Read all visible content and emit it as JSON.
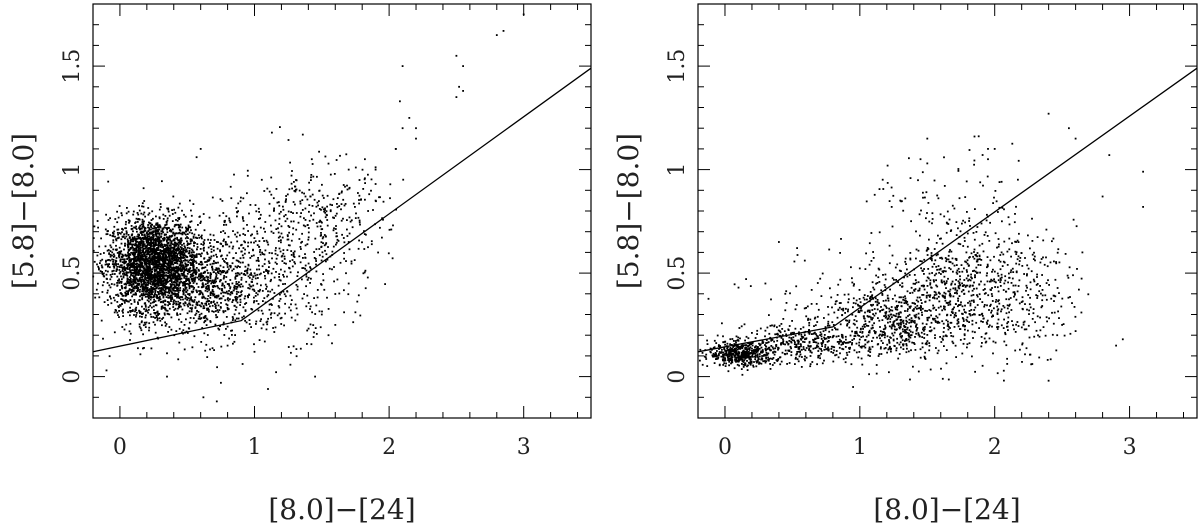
{
  "chart_data": [
    {
      "type": "scatter",
      "xlabel": "[8.0]−[24]",
      "ylabel": "[5.8]−[8.0]",
      "xlim": [
        -0.2,
        3.5
      ],
      "ylim": [
        -0.2,
        1.8
      ],
      "xticks": [
        "0",
        "1",
        "2",
        "3"
      ],
      "yticks": [
        "0",
        "0.5",
        "1",
        "1.5"
      ],
      "grid": false,
      "legend": "none",
      "separator_line": {
        "x": [
          -0.2,
          0.9,
          3.5
        ],
        "y": [
          0.12,
          0.27,
          1.49
        ]
      },
      "clusters": [
        {
          "cx": 0.25,
          "cy": 0.55,
          "sx": 0.17,
          "sy": 0.11,
          "n": 2600
        },
        {
          "cx": 0.55,
          "cy": 0.42,
          "sx": 0.28,
          "sy": 0.12,
          "n": 900
        },
        {
          "cx": 1.1,
          "cy": 0.55,
          "sx": 0.3,
          "sy": 0.18,
          "n": 500
        },
        {
          "cx": 1.5,
          "cy": 0.75,
          "sx": 0.25,
          "sy": 0.15,
          "n": 280
        }
      ],
      "points": [
        [
          0.6,
          1.1
        ],
        [
          0.57,
          1.06
        ],
        [
          0.95,
          0.97
        ],
        [
          -0.1,
          0.03
        ],
        [
          0.35,
          0.0
        ],
        [
          0.62,
          -0.1
        ],
        [
          0.72,
          -0.12
        ],
        [
          1.1,
          -0.06
        ],
        [
          1.45,
          0.0
        ],
        [
          0.75,
          -0.03
        ],
        [
          1.78,
          0.95
        ],
        [
          1.82,
          1.05
        ],
        [
          1.9,
          1.0
        ],
        [
          1.7,
          1.0
        ],
        [
          2.1,
          1.5
        ],
        [
          2.08,
          1.33
        ],
        [
          2.1,
          1.2
        ],
        [
          2.15,
          1.25
        ],
        [
          2.2,
          1.15
        ],
        [
          2.05,
          1.1
        ],
        [
          2.05,
          1.1
        ],
        [
          2.2,
          1.2
        ],
        [
          2.5,
          1.55
        ],
        [
          2.55,
          1.5
        ],
        [
          2.52,
          1.4
        ],
        [
          2.5,
          1.35
        ],
        [
          2.55,
          1.38
        ],
        [
          2.8,
          1.65
        ],
        [
          2.85,
          1.67
        ],
        [
          3.0,
          1.75
        ],
        [
          1.5,
          0.3
        ],
        [
          1.6,
          0.25
        ],
        [
          1.55,
          0.2
        ],
        [
          1.7,
          0.45
        ],
        [
          1.0,
          0.12
        ],
        [
          0.8,
          0.15
        ],
        [
          1.7,
          0.65
        ],
        [
          1.9,
          0.85
        ]
      ]
    },
    {
      "type": "scatter",
      "xlabel": "[8.0]−[24]",
      "ylabel": "[5.8]−[8.0]",
      "xlim": [
        -0.2,
        3.5
      ],
      "ylim": [
        -0.2,
        1.8
      ],
      "xticks": [
        "0",
        "1",
        "2",
        "3"
      ],
      "yticks": [
        "0",
        "0.5",
        "1",
        "1.5"
      ],
      "grid": false,
      "legend": "none",
      "separator_line": {
        "x": [
          -0.2,
          0.8,
          3.5
        ],
        "y": [
          0.12,
          0.24,
          1.49
        ]
      },
      "clusters": [
        {
          "cx": 0.12,
          "cy": 0.11,
          "sx": 0.12,
          "sy": 0.03,
          "n": 500
        },
        {
          "cx": 0.6,
          "cy": 0.16,
          "sx": 0.22,
          "sy": 0.05,
          "n": 350
        },
        {
          "cx": 1.2,
          "cy": 0.25,
          "sx": 0.22,
          "sy": 0.08,
          "n": 400
        },
        {
          "cx": 1.7,
          "cy": 0.4,
          "sx": 0.25,
          "sy": 0.15,
          "n": 550
        },
        {
          "cx": 2.2,
          "cy": 0.4,
          "sx": 0.2,
          "sy": 0.15,
          "n": 250
        },
        {
          "cx": 1.2,
          "cy": 0.35,
          "sx": 0.45,
          "sy": 0.14,
          "n": 250
        },
        {
          "cx": 1.7,
          "cy": 0.75,
          "sx": 0.3,
          "sy": 0.17,
          "n": 120
        }
      ],
      "points": [
        [
          1.85,
          1.16
        ],
        [
          1.95,
          1.1
        ],
        [
          1.95,
          1.05
        ],
        [
          2.0,
          1.1
        ],
        [
          2.4,
          1.27
        ],
        [
          2.6,
          1.15
        ],
        [
          2.55,
          1.2
        ],
        [
          2.8,
          0.87
        ],
        [
          3.1,
          0.99
        ],
        [
          3.1,
          0.82
        ],
        [
          2.85,
          1.07
        ],
        [
          2.95,
          0.18
        ],
        [
          2.9,
          0.15
        ],
        [
          1.5,
          1.15
        ],
        [
          1.3,
          0.85
        ],
        [
          1.45,
          1.05
        ],
        [
          1.5,
          1.03
        ],
        [
          0.3,
          0.45
        ],
        [
          0.1,
          0.43
        ],
        [
          0.4,
          0.65
        ],
        [
          2.65,
          0.6
        ],
        [
          2.5,
          0.25
        ],
        [
          2.6,
          0.22
        ],
        [
          2.4,
          -0.02
        ],
        [
          0.95,
          -0.05
        ]
      ]
    }
  ]
}
